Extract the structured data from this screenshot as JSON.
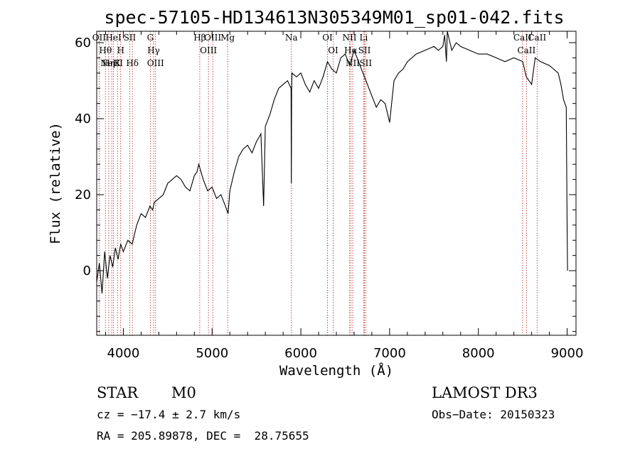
{
  "chart_data": {
    "type": "line",
    "title": "spec-57105-HD134613N305349M01_sp01-042.fits",
    "xlabel": "Wavelength (Å)",
    "ylabel": "Flux (relative)",
    "xlim": [
      3700,
      9100
    ],
    "ylim": [
      -17,
      63
    ],
    "grid": false,
    "x_ticks": [
      4000,
      5000,
      6000,
      7000,
      8000,
      9000
    ],
    "x_tick_labels": [
      "4000",
      "5000",
      "6000",
      "7000",
      "8000",
      "9000"
    ],
    "y_ticks": [
      0,
      20,
      40,
      60
    ],
    "y_tick_labels": [
      "0",
      "20",
      "40",
      "60"
    ],
    "series": [
      {
        "x": [
          3700,
          3730,
          3760,
          3790,
          3820,
          3850,
          3880,
          3910,
          3940,
          3970,
          4000,
          4050,
          4100,
          4150,
          4200,
          4250,
          4300,
          4330,
          4350,
          4400,
          4450,
          4500,
          4550,
          4600,
          4650,
          4700,
          4750,
          4800,
          4830,
          4850,
          4900,
          4950,
          5000,
          5050,
          5100,
          5150,
          5180,
          5200,
          5250,
          5300,
          5350,
          5400,
          5450,
          5500,
          5550,
          5580,
          5600,
          5650,
          5700,
          5750,
          5800,
          5850,
          5890,
          5893,
          5896,
          5900,
          5950,
          6000,
          6050,
          6100,
          6150,
          6200,
          6250,
          6300,
          6350,
          6400,
          6450,
          6500,
          6550,
          6563,
          6600,
          6650,
          6700,
          6750,
          6800,
          6850,
          6900,
          6950,
          7000,
          7050,
          7100,
          7150,
          7200,
          7300,
          7400,
          7500,
          7550,
          7600,
          7620,
          7640,
          7650,
          7700,
          7750,
          7800,
          7900,
          8000,
          8100,
          8200,
          8300,
          8400,
          8500,
          8540,
          8600,
          8640,
          8700,
          8800,
          8850,
          8900,
          8930,
          8960,
          8990,
          9000,
          9005
        ],
        "y": [
          -3,
          2,
          -6,
          5,
          -2,
          4,
          1,
          6,
          3,
          7,
          5,
          8,
          7,
          12,
          15,
          14,
          17,
          16,
          18,
          19,
          20,
          23,
          24,
          25,
          24,
          22,
          21,
          25,
          26,
          28,
          24,
          21,
          22,
          19,
          20,
          17,
          15,
          21,
          26,
          30,
          32,
          33,
          31,
          34,
          36,
          17,
          38,
          41,
          45,
          48,
          49,
          50,
          48,
          23,
          47,
          52,
          51,
          52,
          49,
          47,
          50,
          48,
          51,
          55,
          53,
          52,
          56,
          57,
          54,
          55,
          58,
          55,
          52,
          49,
          46,
          43,
          45,
          44,
          39,
          50,
          52,
          53,
          55,
          57,
          58,
          59,
          58,
          59,
          62,
          55,
          63,
          58,
          60,
          59,
          58,
          57,
          57,
          56,
          55,
          56,
          55,
          51,
          49,
          56,
          55,
          54,
          53,
          52,
          49,
          45,
          43,
          12,
          0
        ]
      }
    ],
    "spectral_lines": [
      {
        "wavelength": 3727,
        "label": "OII"
      },
      {
        "wavelength": 3798,
        "label": "Hθ"
      },
      {
        "wavelength": 3835,
        "label": "Hη"
      },
      {
        "wavelength": 3869,
        "label": "NeIII"
      },
      {
        "wavelength": 3889,
        "label": "HeI"
      },
      {
        "wavelength": 3934,
        "label": "K"
      },
      {
        "wavelength": 3970,
        "label": "H"
      },
      {
        "wavelength": 4072,
        "label": "SII"
      },
      {
        "wavelength": 4102,
        "label": "Hδ"
      },
      {
        "wavelength": 4304,
        "label": "G"
      },
      {
        "wavelength": 4341,
        "label": "Hγ"
      },
      {
        "wavelength": 4363,
        "label": "OIII"
      },
      {
        "wavelength": 4861,
        "label": "Hβ"
      },
      {
        "wavelength": 4959,
        "label": "OIII"
      },
      {
        "wavelength": 5007,
        "label": "OIII"
      },
      {
        "wavelength": 5175,
        "label": "Mg"
      },
      {
        "wavelength": 5893,
        "label": "Na"
      },
      {
        "wavelength": 6300,
        "label": "OI"
      },
      {
        "wavelength": 6364,
        "label": "OI"
      },
      {
        "wavelength": 6548,
        "label": "NII"
      },
      {
        "wavelength": 6563,
        "label": "Hα"
      },
      {
        "wavelength": 6584,
        "label": "NII"
      },
      {
        "wavelength": 6708,
        "label": "Li"
      },
      {
        "wavelength": 6717,
        "label": "SII"
      },
      {
        "wavelength": 6731,
        "label": "SII"
      },
      {
        "wavelength": 8498,
        "label": "CaII"
      },
      {
        "wavelength": 8542,
        "label": "CaII"
      },
      {
        "wavelength": 8662,
        "label": "CaII"
      }
    ]
  },
  "info": {
    "class": "STAR",
    "subclass": "M0",
    "survey": "LAMOST DR3",
    "redshift": "cz = −17.4 ± 2.7 km/s",
    "obs_date": "Obs−Date: 20150323",
    "coords": "RA = 205.89878, DEC =  28.75655"
  },
  "colors": {
    "spectrum": "#000000",
    "line_markers": "#b22222"
  }
}
